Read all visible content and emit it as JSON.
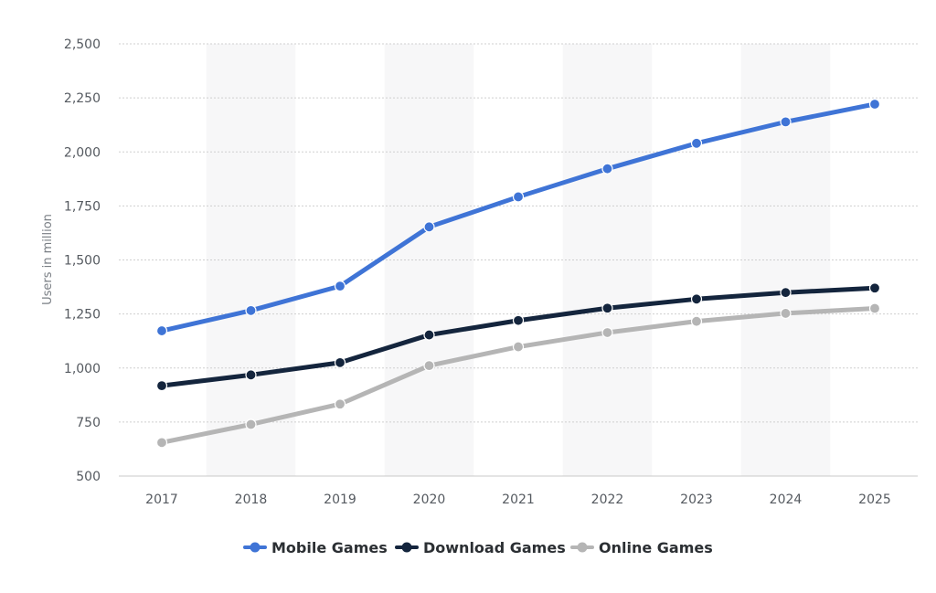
{
  "chart_data": {
    "type": "line",
    "title": "",
    "xlabel": "",
    "ylabel": "Users in million",
    "x": [
      "2017",
      "2018",
      "2019",
      "2020",
      "2021",
      "2022",
      "2023",
      "2024",
      "2025"
    ],
    "yticks": [
      "500",
      "750",
      "1,000",
      "1,250",
      "1,500",
      "1,750",
      "2,000",
      "2,250",
      "2,500"
    ],
    "ylim": [
      500,
      2500
    ],
    "grid": true,
    "legend_position": "bottom",
    "series": [
      {
        "name": "Mobile Games",
        "color": "#3f74d6",
        "values": [
          1172,
          1266,
          1379,
          1653,
          1792,
          1922,
          2040,
          2139,
          2221
        ]
      },
      {
        "name": "Download Games",
        "color": "#14253d",
        "values": [
          918,
          968,
          1025,
          1153,
          1220,
          1277,
          1319,
          1349,
          1370
        ]
      },
      {
        "name": "Online Games",
        "color": "#b5b5b5",
        "values": [
          655,
          739,
          833,
          1011,
          1098,
          1164,
          1216,
          1253,
          1276
        ]
      }
    ]
  }
}
